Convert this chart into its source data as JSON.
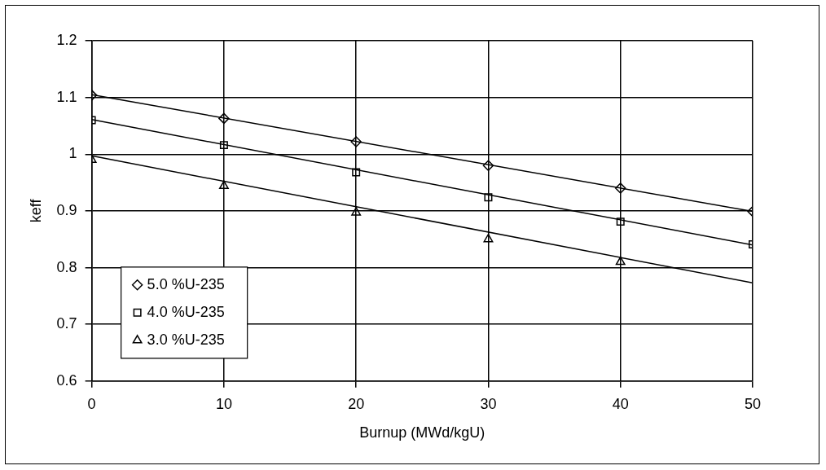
{
  "chart_data": {
    "type": "scatter",
    "xlabel": "Burnup (MWd/kgU)",
    "ylabel": "keff",
    "x": [
      0,
      10,
      20,
      30,
      40,
      50
    ],
    "series": [
      {
        "name": "5.0 %U-235",
        "color": "#000000",
        "marker": "diamond",
        "values": [
          1.104,
          1.063,
          1.022,
          0.98,
          0.94,
          0.899
        ]
      },
      {
        "name": "4.0 %U-235",
        "color": "#000000",
        "marker": "square",
        "values": [
          1.06,
          1.016,
          0.968,
          0.924,
          0.881,
          0.841
        ]
      },
      {
        "name": "3.0 %U-235",
        "color": "#000000",
        "marker": "triangle",
        "values": [
          0.99,
          0.944,
          0.897,
          0.85,
          0.81,
          null
        ]
      },
      {
        "type": "line",
        "color": "#000000",
        "values": [
          1.105,
          null,
          null,
          null,
          null,
          0.899
        ]
      },
      {
        "type": "line",
        "color": "#000000",
        "values": [
          1.061,
          null,
          null,
          null,
          null,
          0.84
        ]
      },
      {
        "type": "line",
        "color": "#000000",
        "values": [
          0.997,
          null,
          null,
          null,
          null,
          0.773
        ]
      }
    ],
    "xlim": [
      0,
      50
    ],
    "xticks": [
      0,
      10,
      20,
      30,
      40,
      50
    ],
    "ylim": [
      0.6,
      1.2
    ],
    "yticks": [
      0.6,
      0.7,
      0.8,
      0.9,
      1,
      1.1,
      1.2
    ],
    "grid": true,
    "legend": "bottom left"
  }
}
